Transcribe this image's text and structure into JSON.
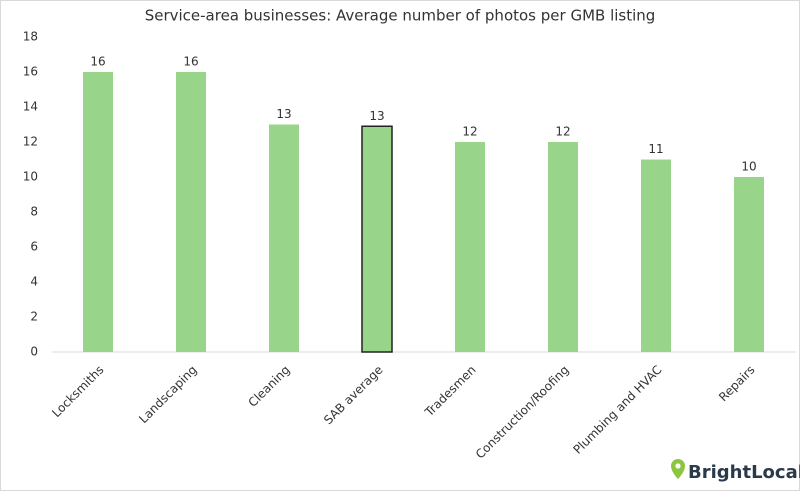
{
  "chart_data": {
    "type": "bar",
    "title": "Service-area businesses: Average number of photos per GMB listing",
    "categories": [
      "Locksmiths",
      "Landscaping",
      "Cleaning",
      "SAB average",
      "Tradesmen",
      "Construction/Roofing",
      "Plumbing and HVAC",
      "Repairs"
    ],
    "values": [
      16,
      16,
      13,
      12.9,
      12,
      12,
      11,
      10
    ],
    "value_labels": [
      "16",
      "16",
      "13",
      "13",
      "12",
      "12",
      "11",
      "10"
    ],
    "color": "#98d58a",
    "highlight_index": 3,
    "highlight_stroke": "#222222",
    "ylim": [
      0,
      18
    ],
    "yticks": [
      0,
      2,
      4,
      6,
      8,
      10,
      12,
      14,
      16,
      18
    ],
    "grid": false,
    "brand": "BrightLocal"
  }
}
